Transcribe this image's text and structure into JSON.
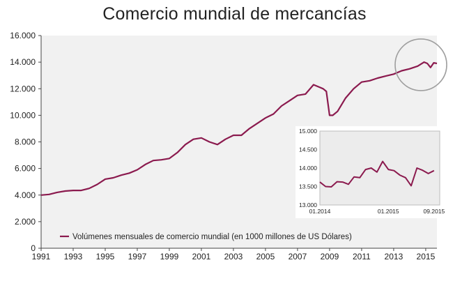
{
  "title": "Comercio mundial de mercancías",
  "colors": {
    "series": "#8b1a4e",
    "plot_bg": "#f1f1f1",
    "inset_bg": "#ececec",
    "inset_border": "#bdbdbd",
    "highlight_circle": "#9e9e9e"
  },
  "chart_data": [
    {
      "type": "line",
      "title": "Comercio mundial de mercancías",
      "xlim": [
        1991,
        2015.7
      ],
      "ylim": [
        0,
        16000
      ],
      "x_ticks": [
        1991,
        1993,
        1995,
        1997,
        1999,
        2001,
        2003,
        2005,
        2007,
        2009,
        2011,
        2013,
        2015
      ],
      "x_tick_labels": [
        "1991",
        "1993",
        "1995",
        "1997",
        "1999",
        "2001",
        "2003",
        "2005",
        "2007",
        "2009",
        "2011",
        "2013",
        "2015"
      ],
      "y_ticks": [
        0,
        2000,
        4000,
        6000,
        8000,
        10000,
        12000,
        14000,
        16000
      ],
      "y_tick_labels": [
        "0",
        "2.000",
        "4.000",
        "6.000",
        "8.000",
        "10.000",
        "12.000",
        "14.000",
        "16.000"
      ],
      "grid": false,
      "legend": {
        "position": "bottom-left",
        "entries": [
          "Volúmenes mensuales de comercio mundial (en 1000 millones de US Dólares)"
        ]
      },
      "annotation": {
        "type": "circle",
        "around": "2014–2015"
      },
      "series": [
        {
          "name": "Volúmenes mensuales de comercio mundial (en 1000 millones de US Dólares)",
          "x": [
            1991.0,
            1991.5,
            1992.0,
            1992.5,
            1993.0,
            1993.5,
            1994.0,
            1994.5,
            1995.0,
            1995.5,
            1996.0,
            1996.5,
            1997.0,
            1997.5,
            1998.0,
            1998.5,
            1999.0,
            1999.5,
            2000.0,
            2000.5,
            2001.0,
            2001.5,
            2002.0,
            2002.5,
            2003.0,
            2003.5,
            2004.0,
            2004.5,
            2005.0,
            2005.5,
            2006.0,
            2006.5,
            2007.0,
            2007.5,
            2008.0,
            2008.3,
            2008.6,
            2008.8,
            2009.0,
            2009.2,
            2009.5,
            2010.0,
            2010.5,
            2011.0,
            2011.5,
            2012.0,
            2012.5,
            2013.0,
            2013.5,
            2014.0,
            2014.5,
            2014.9,
            2015.1,
            2015.3,
            2015.5,
            2015.7
          ],
          "y": [
            4000,
            4050,
            4200,
            4300,
            4350,
            4350,
            4500,
            4800,
            5200,
            5300,
            5500,
            5650,
            5900,
            6300,
            6600,
            6650,
            6750,
            7200,
            7800,
            8200,
            8300,
            8000,
            7800,
            8200,
            8500,
            8500,
            9000,
            9400,
            9800,
            10100,
            10700,
            11100,
            11500,
            11600,
            12300,
            12150,
            12000,
            11800,
            10000,
            10000,
            10300,
            11300,
            12000,
            12500,
            12600,
            12800,
            12950,
            13100,
            13350,
            13500,
            13700,
            14000,
            13900,
            13600,
            13950,
            13900
          ]
        }
      ]
    },
    {
      "type": "line",
      "title": "",
      "xlim": [
        2014.0,
        2015.75
      ],
      "ylim": [
        13000,
        15000
      ],
      "x_tick_labels": [
        "01.2014",
        "01.2015",
        "09.2015"
      ],
      "y_ticks": [
        13000,
        13500,
        14000,
        14500,
        15000
      ],
      "y_tick_labels": [
        "13.000",
        "13.500",
        "14.000",
        "14.500",
        "15.000"
      ],
      "grid": false,
      "series": [
        {
          "name": "",
          "x": [
            2014.0,
            2014.083,
            2014.167,
            2014.25,
            2014.333,
            2014.417,
            2014.5,
            2014.583,
            2014.667,
            2014.75,
            2014.833,
            2014.917,
            2015.0,
            2015.083,
            2015.167,
            2015.25,
            2015.333,
            2015.417,
            2015.5,
            2015.583,
            2015.667
          ],
          "y": [
            13620,
            13500,
            13490,
            13630,
            13620,
            13560,
            13760,
            13740,
            13960,
            14000,
            13890,
            14180,
            13960,
            13930,
            13810,
            13740,
            13520,
            14000,
            13940,
            13850,
            13930
          ]
        }
      ]
    }
  ]
}
